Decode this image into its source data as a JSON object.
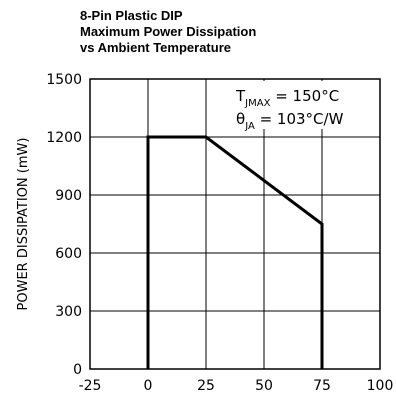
{
  "chart_data": {
    "type": "line",
    "title_lines": [
      "8-Pin Plastic DIP",
      "Maximum Power Dissipation",
      "vs Ambient Temperature"
    ],
    "xlabel": "",
    "ylabel": "POWER DISSIPATION (mW)",
    "xlim": [
      -25,
      100
    ],
    "ylim": [
      0,
      1500
    ],
    "x_ticks": [
      -25,
      0,
      25,
      50,
      75,
      100
    ],
    "y_ticks": [
      0,
      300,
      600,
      900,
      1200,
      1500
    ],
    "grid": true,
    "series": [
      {
        "x": [
          0,
          0,
          25,
          75,
          75
        ],
        "y": [
          0,
          1200,
          1200,
          750,
          0
        ]
      }
    ],
    "annotations": {
      "line1": {
        "main": "T",
        "sub": "JMAX",
        "rest": " = 150°C"
      },
      "line2": {
        "main": "θ",
        "sub": "JA",
        "rest": " = 103°C/W"
      }
    }
  }
}
